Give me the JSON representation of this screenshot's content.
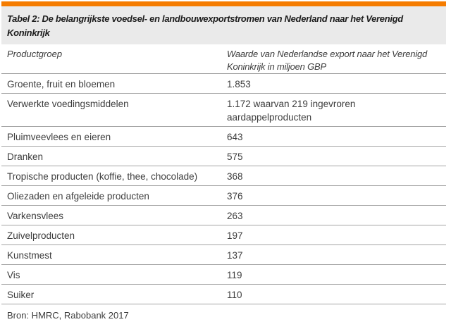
{
  "table": {
    "title": "Tabel 2: De belangrijkste voedsel- en landbouwexportstromen van Nederland naar het Verenigd Koninkrijk",
    "columns": [
      "Productgroep",
      "Waarde van Nederlandse export naar het Verenigd Koninkrijk in miljoen GBP"
    ],
    "rows": [
      {
        "product": "Groente, fruit en bloemen",
        "value": "1.853"
      },
      {
        "product": "Verwerkte voedingsmiddelen",
        "value": "1.172 waarvan 219 ingevroren aardappelproducten"
      },
      {
        "product": "Pluimveevlees en eieren",
        "value": "643"
      },
      {
        "product": "Dranken",
        "value": "575"
      },
      {
        "product": "Tropische producten (koffie, thee, chocolade)",
        "value": "368"
      },
      {
        "product": "Oliezaden en afgeleide producten",
        "value": "376"
      },
      {
        "product": "Varkensvlees",
        "value": "263"
      },
      {
        "product": "Zuivelproducten",
        "value": "197"
      },
      {
        "product": "Kunstmest",
        "value": "137"
      },
      {
        "product": "Vis",
        "value": "119"
      },
      {
        "product": "Suiker",
        "value": "110"
      }
    ],
    "source": "Bron: HMRC, Rabobank 2017"
  },
  "chart_data": {
    "type": "table",
    "title": "Tabel 2: De belangrijkste voedsel- en landbouwexportstromen van Nederland naar het Verenigd Koninkrijk",
    "categories": [
      "Groente, fruit en bloemen",
      "Verwerkte voedingsmiddelen",
      "Pluimveevlees en eieren",
      "Dranken",
      "Tropische producten (koffie, thee, chocolade)",
      "Oliezaden en afgeleide producten",
      "Varkensvlees",
      "Zuivelproducten",
      "Kunstmest",
      "Vis",
      "Suiker"
    ],
    "values": [
      1853,
      1172,
      643,
      575,
      368,
      376,
      263,
      197,
      137,
      119,
      110
    ],
    "ylabel": "Waarde van Nederlandse export naar het Verenigd Koninkrijk in miljoen GBP",
    "notes": "Verwerkte voedingsmiddelen: 1.172 waarvan 219 ingevroren aardappelproducten"
  },
  "colors": {
    "accent": "#F57C00",
    "title_background": "#EAEAEA",
    "rule": "#A4A4A4",
    "text": "#3D3D3D"
  }
}
